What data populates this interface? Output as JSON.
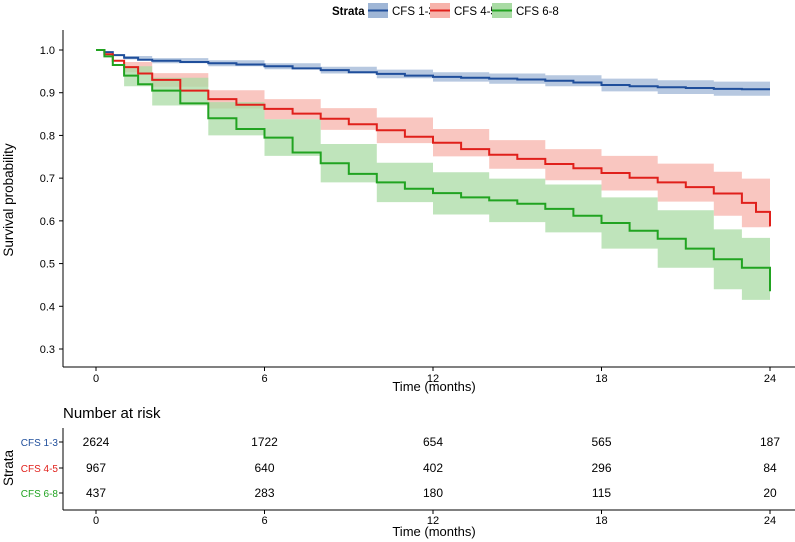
{
  "legend": {
    "title": "Strata"
  },
  "chart_data": {
    "type": "line",
    "subtype": "kaplan-meier",
    "xlabel": "Time (months)",
    "ylabel": "Survival probability",
    "xlim": [
      0,
      24
    ],
    "ylim": [
      0.3,
      1.0
    ],
    "xticks": [
      "0",
      "6",
      "12",
      "18",
      "24"
    ],
    "yticks": [
      "0.3",
      "0.4",
      "0.5",
      "0.6",
      "0.7",
      "0.8",
      "0.9",
      "1.0"
    ],
    "grid": false,
    "legend_position": "top",
    "series": [
      {
        "name": "CFS 1-3",
        "color": "#1f4e9b",
        "band_color": "#9fb6d6",
        "points": [
          [
            0,
            1.0
          ],
          [
            0.3,
            0.995
          ],
          [
            0.6,
            0.988
          ],
          [
            1,
            0.982
          ],
          [
            1.5,
            0.977
          ],
          [
            2,
            0.975
          ],
          [
            3,
            0.972
          ],
          [
            4,
            0.969
          ],
          [
            5,
            0.966
          ],
          [
            6,
            0.962
          ],
          [
            7,
            0.957
          ],
          [
            8,
            0.953
          ],
          [
            9,
            0.948
          ],
          [
            10,
            0.944
          ],
          [
            11,
            0.94
          ],
          [
            12,
            0.937
          ],
          [
            13,
            0.935
          ],
          [
            14,
            0.933
          ],
          [
            15,
            0.931
          ],
          [
            16,
            0.928
          ],
          [
            17,
            0.924
          ],
          [
            18,
            0.918
          ],
          [
            19,
            0.915
          ],
          [
            20,
            0.913
          ],
          [
            21,
            0.911
          ],
          [
            22,
            0.909
          ],
          [
            23,
            0.908
          ],
          [
            24,
            0.908
          ]
        ],
        "ci_lower": [
          [
            0,
            1.0
          ],
          [
            1,
            0.978
          ],
          [
            2,
            0.969
          ],
          [
            4,
            0.962
          ],
          [
            6,
            0.955
          ],
          [
            8,
            0.945
          ],
          [
            10,
            0.934
          ],
          [
            12,
            0.926
          ],
          [
            14,
            0.921
          ],
          [
            16,
            0.915
          ],
          [
            18,
            0.903
          ],
          [
            20,
            0.897
          ],
          [
            22,
            0.893
          ],
          [
            24,
            0.891
          ]
        ],
        "ci_upper": [
          [
            0,
            1.0
          ],
          [
            1,
            0.986
          ],
          [
            2,
            0.981
          ],
          [
            4,
            0.976
          ],
          [
            6,
            0.969
          ],
          [
            8,
            0.961
          ],
          [
            10,
            0.954
          ],
          [
            12,
            0.948
          ],
          [
            14,
            0.945
          ],
          [
            16,
            0.941
          ],
          [
            18,
            0.933
          ],
          [
            20,
            0.929
          ],
          [
            22,
            0.926
          ],
          [
            24,
            0.925
          ]
        ]
      },
      {
        "name": "CFS 4-5",
        "color": "#e0201b",
        "band_color": "#f7b3ab",
        "points": [
          [
            0,
            1.0
          ],
          [
            0.3,
            0.99
          ],
          [
            0.6,
            0.975
          ],
          [
            1,
            0.96
          ],
          [
            1.5,
            0.945
          ],
          [
            2,
            0.93
          ],
          [
            3,
            0.905
          ],
          [
            4,
            0.885
          ],
          [
            5,
            0.872
          ],
          [
            6,
            0.862
          ],
          [
            7,
            0.851
          ],
          [
            8,
            0.839
          ],
          [
            9,
            0.826
          ],
          [
            10,
            0.812
          ],
          [
            11,
            0.797
          ],
          [
            12,
            0.783
          ],
          [
            13,
            0.768
          ],
          [
            14,
            0.755
          ],
          [
            15,
            0.745
          ],
          [
            16,
            0.733
          ],
          [
            17,
            0.723
          ],
          [
            18,
            0.712
          ],
          [
            19,
            0.701
          ],
          [
            20,
            0.69
          ],
          [
            21,
            0.679
          ],
          [
            22,
            0.664
          ],
          [
            23,
            0.642
          ],
          [
            23.5,
            0.621
          ],
          [
            24,
            0.587
          ]
        ],
        "ci_lower": [
          [
            0,
            1.0
          ],
          [
            1,
            0.948
          ],
          [
            2,
            0.914
          ],
          [
            4,
            0.863
          ],
          [
            6,
            0.838
          ],
          [
            8,
            0.813
          ],
          [
            10,
            0.782
          ],
          [
            12,
            0.751
          ],
          [
            14,
            0.722
          ],
          [
            16,
            0.695
          ],
          [
            18,
            0.671
          ],
          [
            20,
            0.645
          ],
          [
            22,
            0.612
          ],
          [
            23,
            0.585
          ],
          [
            24,
            0.535
          ]
        ],
        "ci_upper": [
          [
            0,
            1.0
          ],
          [
            1,
            0.972
          ],
          [
            2,
            0.946
          ],
          [
            4,
            0.906
          ],
          [
            6,
            0.885
          ],
          [
            8,
            0.864
          ],
          [
            10,
            0.842
          ],
          [
            12,
            0.815
          ],
          [
            14,
            0.789
          ],
          [
            16,
            0.768
          ],
          [
            18,
            0.752
          ],
          [
            20,
            0.734
          ],
          [
            22,
            0.715
          ],
          [
            23,
            0.699
          ],
          [
            24,
            0.64
          ]
        ]
      },
      {
        "name": "CFS 6-8",
        "color": "#21a321",
        "band_color": "#a9dba4",
        "points": [
          [
            0,
            1.0
          ],
          [
            0.3,
            0.985
          ],
          [
            0.6,
            0.965
          ],
          [
            1,
            0.94
          ],
          [
            1.5,
            0.92
          ],
          [
            2,
            0.905
          ],
          [
            3,
            0.875
          ],
          [
            4,
            0.84
          ],
          [
            5,
            0.815
          ],
          [
            6,
            0.795
          ],
          [
            7,
            0.76
          ],
          [
            8,
            0.735
          ],
          [
            9,
            0.71
          ],
          [
            10,
            0.69
          ],
          [
            11,
            0.675
          ],
          [
            12,
            0.665
          ],
          [
            13,
            0.655
          ],
          [
            14,
            0.648
          ],
          [
            15,
            0.64
          ],
          [
            16,
            0.628
          ],
          [
            17,
            0.612
          ],
          [
            18,
            0.595
          ],
          [
            19,
            0.577
          ],
          [
            20,
            0.558
          ],
          [
            21,
            0.535
          ],
          [
            22,
            0.51
          ],
          [
            23,
            0.49
          ],
          [
            24,
            0.435
          ]
        ],
        "ci_lower": [
          [
            0,
            1.0
          ],
          [
            1,
            0.915
          ],
          [
            2,
            0.87
          ],
          [
            4,
            0.8
          ],
          [
            6,
            0.752
          ],
          [
            8,
            0.69
          ],
          [
            10,
            0.644
          ],
          [
            12,
            0.615
          ],
          [
            14,
            0.597
          ],
          [
            16,
            0.573
          ],
          [
            18,
            0.535
          ],
          [
            20,
            0.49
          ],
          [
            22,
            0.44
          ],
          [
            23,
            0.415
          ],
          [
            24,
            0.365
          ]
        ],
        "ci_upper": [
          [
            0,
            1.0
          ],
          [
            1,
            0.962
          ],
          [
            2,
            0.935
          ],
          [
            4,
            0.878
          ],
          [
            6,
            0.838
          ],
          [
            8,
            0.78
          ],
          [
            10,
            0.736
          ],
          [
            12,
            0.714
          ],
          [
            14,
            0.699
          ],
          [
            16,
            0.685
          ],
          [
            18,
            0.655
          ],
          [
            20,
            0.625
          ],
          [
            22,
            0.58
          ],
          [
            23,
            0.56
          ],
          [
            24,
            0.52
          ]
        ]
      }
    ]
  },
  "risk_table": {
    "title": "Number at risk",
    "ylabel": "Strata",
    "xlabel": "Time (months)",
    "times": [
      "0",
      "6",
      "12",
      "18",
      "24"
    ],
    "rows": [
      {
        "label": "CFS 1-3",
        "color": "#1f4e9b",
        "values": [
          "2624",
          "1722",
          "654",
          "565",
          "187"
        ]
      },
      {
        "label": "CFS 4-5",
        "color": "#e0201b",
        "values": [
          "967",
          "640",
          "402",
          "296",
          "84"
        ]
      },
      {
        "label": "CFS 6-8",
        "color": "#21a321",
        "values": [
          "437",
          "283",
          "180",
          "115",
          "20"
        ]
      }
    ]
  }
}
